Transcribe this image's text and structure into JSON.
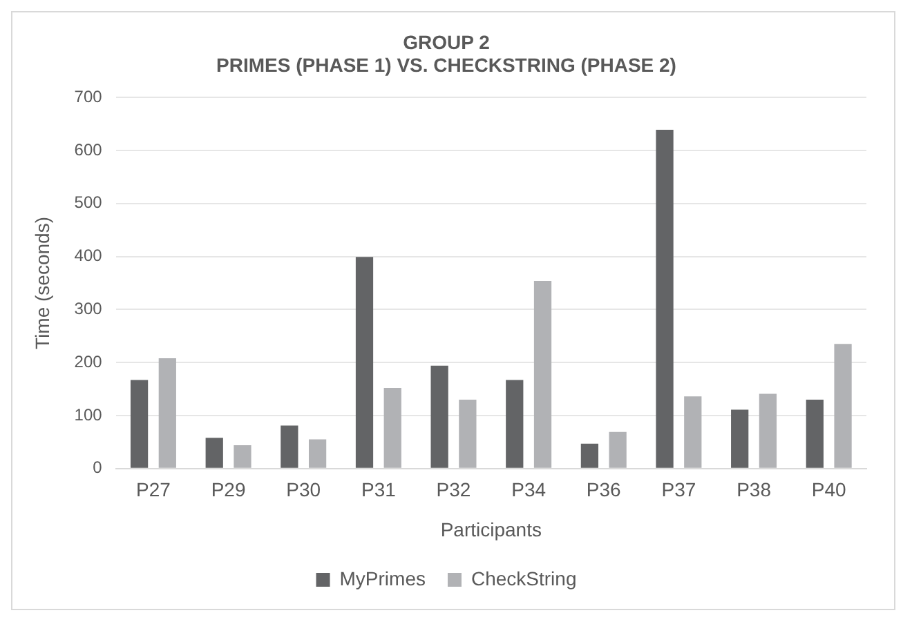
{
  "chart_data": {
    "type": "bar",
    "title": "GROUP 2\nPRIMES (PHASE 1) VS. CHECKSTRING (PHASE 2)",
    "xlabel": "Participants",
    "ylabel": "Time (seconds)",
    "categories": [
      "P27",
      "P29",
      "P30",
      "P31",
      "P32",
      "P34",
      "P36",
      "P37",
      "P38",
      "P40"
    ],
    "series": [
      {
        "name": "MyPrimes",
        "color": "#636466",
        "values": [
          167,
          58,
          81,
          399,
          194,
          167,
          47,
          639,
          111,
          130
        ]
      },
      {
        "name": "CheckString",
        "color": "#b1b2b5",
        "values": [
          208,
          44,
          55,
          152,
          130,
          354,
          69,
          136,
          141,
          235
        ]
      }
    ],
    "ylim": [
      0,
      700
    ],
    "yticks": [
      0,
      100,
      200,
      300,
      400,
      500,
      600,
      700
    ],
    "grid": "y",
    "legend": "bottom"
  }
}
